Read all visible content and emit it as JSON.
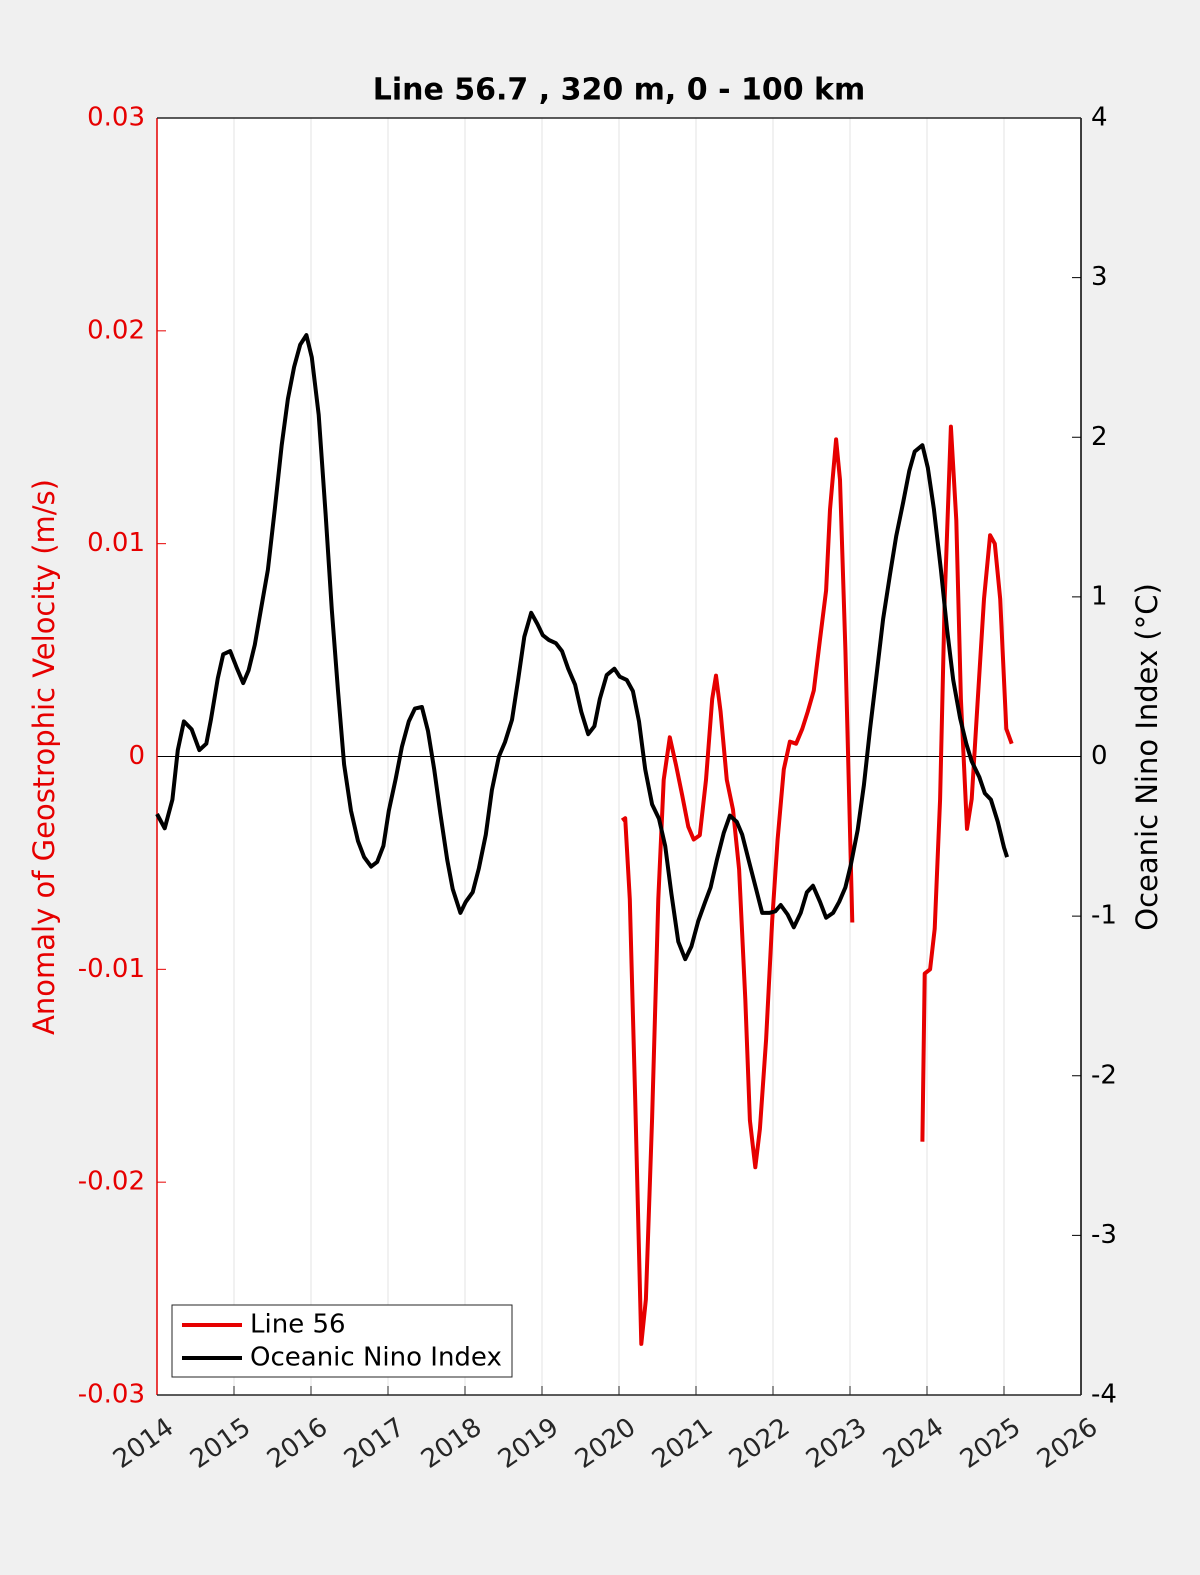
{
  "chart_data": {
    "type": "line",
    "title": "Line 56.7 , 320 m, 0 - 100 km",
    "y_label": "Anomaly of Geostrophic Velocity (m/s)",
    "y2_label": "Oceanic Nino Index (°C)",
    "xlim": [
      2014,
      2026
    ],
    "xticks": [
      2014,
      2015,
      2016,
      2017,
      2018,
      2019,
      2020,
      2021,
      2022,
      2023,
      2024,
      2025,
      2026
    ],
    "ylim": [
      -0.03,
      0.03
    ],
    "yticks": [
      -0.03,
      -0.02,
      -0.01,
      0,
      0.01,
      0.02,
      0.03
    ],
    "y2lim": [
      -4,
      4
    ],
    "y2ticks": [
      -4,
      -3,
      -2,
      -1,
      0,
      1,
      2,
      3,
      4
    ],
    "grid": true,
    "legend": "lower left",
    "series": [
      {
        "name": "Line 56",
        "color": "#e60000",
        "axis": "y",
        "x": [
          2020.04,
          2020.08,
          2020.14,
          2020.21,
          2020.29,
          2020.35,
          2020.43,
          2020.51,
          2020.58,
          2020.66,
          2020.74,
          2020.82,
          2020.9,
          2020.97,
          2021.05,
          2021.13,
          2021.21,
          2021.26,
          2021.32,
          2021.4,
          2021.48,
          2021.56,
          2021.64,
          2021.7,
          2021.77,
          2021.83,
          2021.91,
          2021.99,
          2022.06,
          2022.14,
          2022.22,
          2022.3,
          2022.38,
          2022.45,
          2022.53,
          2022.61,
          2022.69,
          2022.74,
          2022.82,
          2022.87,
          2022.94,
          2022.99,
          2023.03,
          2023.5,
          2023.94,
          2023.97,
          2024.04,
          2024.1,
          2024.17,
          2024.23,
          2024.31,
          2024.38,
          2024.44,
          2024.52,
          2024.58,
          2024.66,
          2024.74,
          2024.82,
          2024.88,
          2024.95,
          2025.03,
          2025.1
        ],
        "values": [
          -0.003,
          -0.0029,
          -0.0067,
          -0.0161,
          -0.0276,
          -0.0255,
          -0.017,
          -0.0067,
          -0.0011,
          0.0009,
          -0.0004,
          -0.0018,
          -0.0033,
          -0.0039,
          -0.0037,
          -0.0011,
          0.0027,
          0.0038,
          0.0021,
          -0.0011,
          -0.0025,
          -0.0053,
          -0.0114,
          -0.0171,
          -0.0193,
          -0.0175,
          -0.0133,
          -0.0077,
          -0.0039,
          -0.0006,
          0.0007,
          0.0006,
          0.0013,
          0.0021,
          0.0031,
          0.0055,
          0.0078,
          0.0116,
          0.0149,
          0.013,
          0.005,
          -0.002,
          -0.0078,
          null,
          -0.0181,
          -0.0102,
          -0.01,
          -0.0081,
          -0.002,
          0.0074,
          0.0155,
          0.0111,
          0.0027,
          -0.0034,
          -0.002,
          0.0027,
          0.0074,
          0.0104,
          0.01,
          0.0074,
          0.0013,
          0.0006
        ]
      },
      {
        "name": "Oceanic Nino Index",
        "color": "#000000",
        "axis": "y2",
        "x": [
          2014.0,
          2014.1,
          2014.2,
          2014.27,
          2014.35,
          2014.45,
          2014.55,
          2014.64,
          2014.7,
          2014.79,
          2014.86,
          2014.95,
          2015.04,
          2015.12,
          2015.19,
          2015.27,
          2015.35,
          2015.44,
          2015.53,
          2015.62,
          2015.7,
          2015.78,
          2015.86,
          2015.94,
          2016.01,
          2016.1,
          2016.19,
          2016.27,
          2016.35,
          2016.43,
          2016.52,
          2016.61,
          2016.69,
          2016.78,
          2016.86,
          2016.94,
          2017.01,
          2017.1,
          2017.18,
          2017.27,
          2017.35,
          2017.44,
          2017.52,
          2017.6,
          2017.68,
          2017.77,
          2017.84,
          2017.94,
          2018.01,
          2018.1,
          2018.18,
          2018.27,
          2018.35,
          2018.44,
          2018.52,
          2018.61,
          2018.69,
          2018.77,
          2018.86,
          2018.94,
          2019.01,
          2019.09,
          2019.18,
          2019.26,
          2019.34,
          2019.43,
          2019.51,
          2019.6,
          2019.68,
          2019.75,
          2019.84,
          2019.94,
          2020.01,
          2020.1,
          2020.18,
          2020.26,
          2020.34,
          2020.43,
          2020.52,
          2020.6,
          2020.68,
          2020.77,
          2020.86,
          2020.94,
          2021.03,
          2021.12,
          2021.19,
          2021.27,
          2021.36,
          2021.44,
          2021.53,
          2021.6,
          2021.69,
          2021.78,
          2021.86,
          2021.95,
          2022.03,
          2022.1,
          2022.19,
          2022.27,
          2022.36,
          2022.44,
          2022.52,
          2022.61,
          2022.69,
          2022.78,
          2022.86,
          2022.94,
          2023.01,
          2023.1,
          2023.18,
          2023.26,
          2023.35,
          2023.43,
          2023.52,
          2023.6,
          2023.69,
          2023.77,
          2023.84,
          2023.94,
          2024.01,
          2024.09,
          2024.18,
          2024.26,
          2024.34,
          2024.43,
          2024.51,
          2024.58,
          2024.68,
          2024.75,
          2024.83,
          2024.92,
          2025.0,
          2025.04
        ],
        "values": [
          -0.36,
          -0.45,
          -0.27,
          0.04,
          0.22,
          0.17,
          0.04,
          0.08,
          0.23,
          0.49,
          0.64,
          0.66,
          0.55,
          0.46,
          0.54,
          0.7,
          0.92,
          1.17,
          1.55,
          1.95,
          2.24,
          2.44,
          2.58,
          2.64,
          2.5,
          2.14,
          1.52,
          0.92,
          0.42,
          -0.05,
          -0.34,
          -0.53,
          -0.63,
          -0.69,
          -0.66,
          -0.56,
          -0.34,
          -0.14,
          0.06,
          0.22,
          0.3,
          0.31,
          0.16,
          -0.08,
          -0.36,
          -0.65,
          -0.83,
          -0.98,
          -0.91,
          -0.85,
          -0.7,
          -0.49,
          -0.21,
          0.0,
          0.09,
          0.23,
          0.48,
          0.75,
          0.9,
          0.83,
          0.76,
          0.73,
          0.71,
          0.66,
          0.55,
          0.45,
          0.28,
          0.14,
          0.19,
          0.36,
          0.51,
          0.55,
          0.5,
          0.48,
          0.41,
          0.22,
          -0.08,
          -0.3,
          -0.39,
          -0.56,
          -0.86,
          -1.16,
          -1.27,
          -1.19,
          -1.03,
          -0.91,
          -0.82,
          -0.65,
          -0.48,
          -0.37,
          -0.41,
          -0.49,
          -0.66,
          -0.83,
          -0.98,
          -0.98,
          -0.97,
          -0.93,
          -0.99,
          -1.07,
          -0.98,
          -0.85,
          -0.81,
          -0.91,
          -1.01,
          -0.98,
          -0.91,
          -0.82,
          -0.68,
          -0.46,
          -0.18,
          0.17,
          0.53,
          0.86,
          1.14,
          1.38,
          1.59,
          1.79,
          1.91,
          1.95,
          1.81,
          1.55,
          1.17,
          0.8,
          0.48,
          0.24,
          0.08,
          -0.03,
          -0.13,
          -0.23,
          -0.27,
          -0.41,
          -0.57,
          -0.63
        ]
      }
    ]
  }
}
